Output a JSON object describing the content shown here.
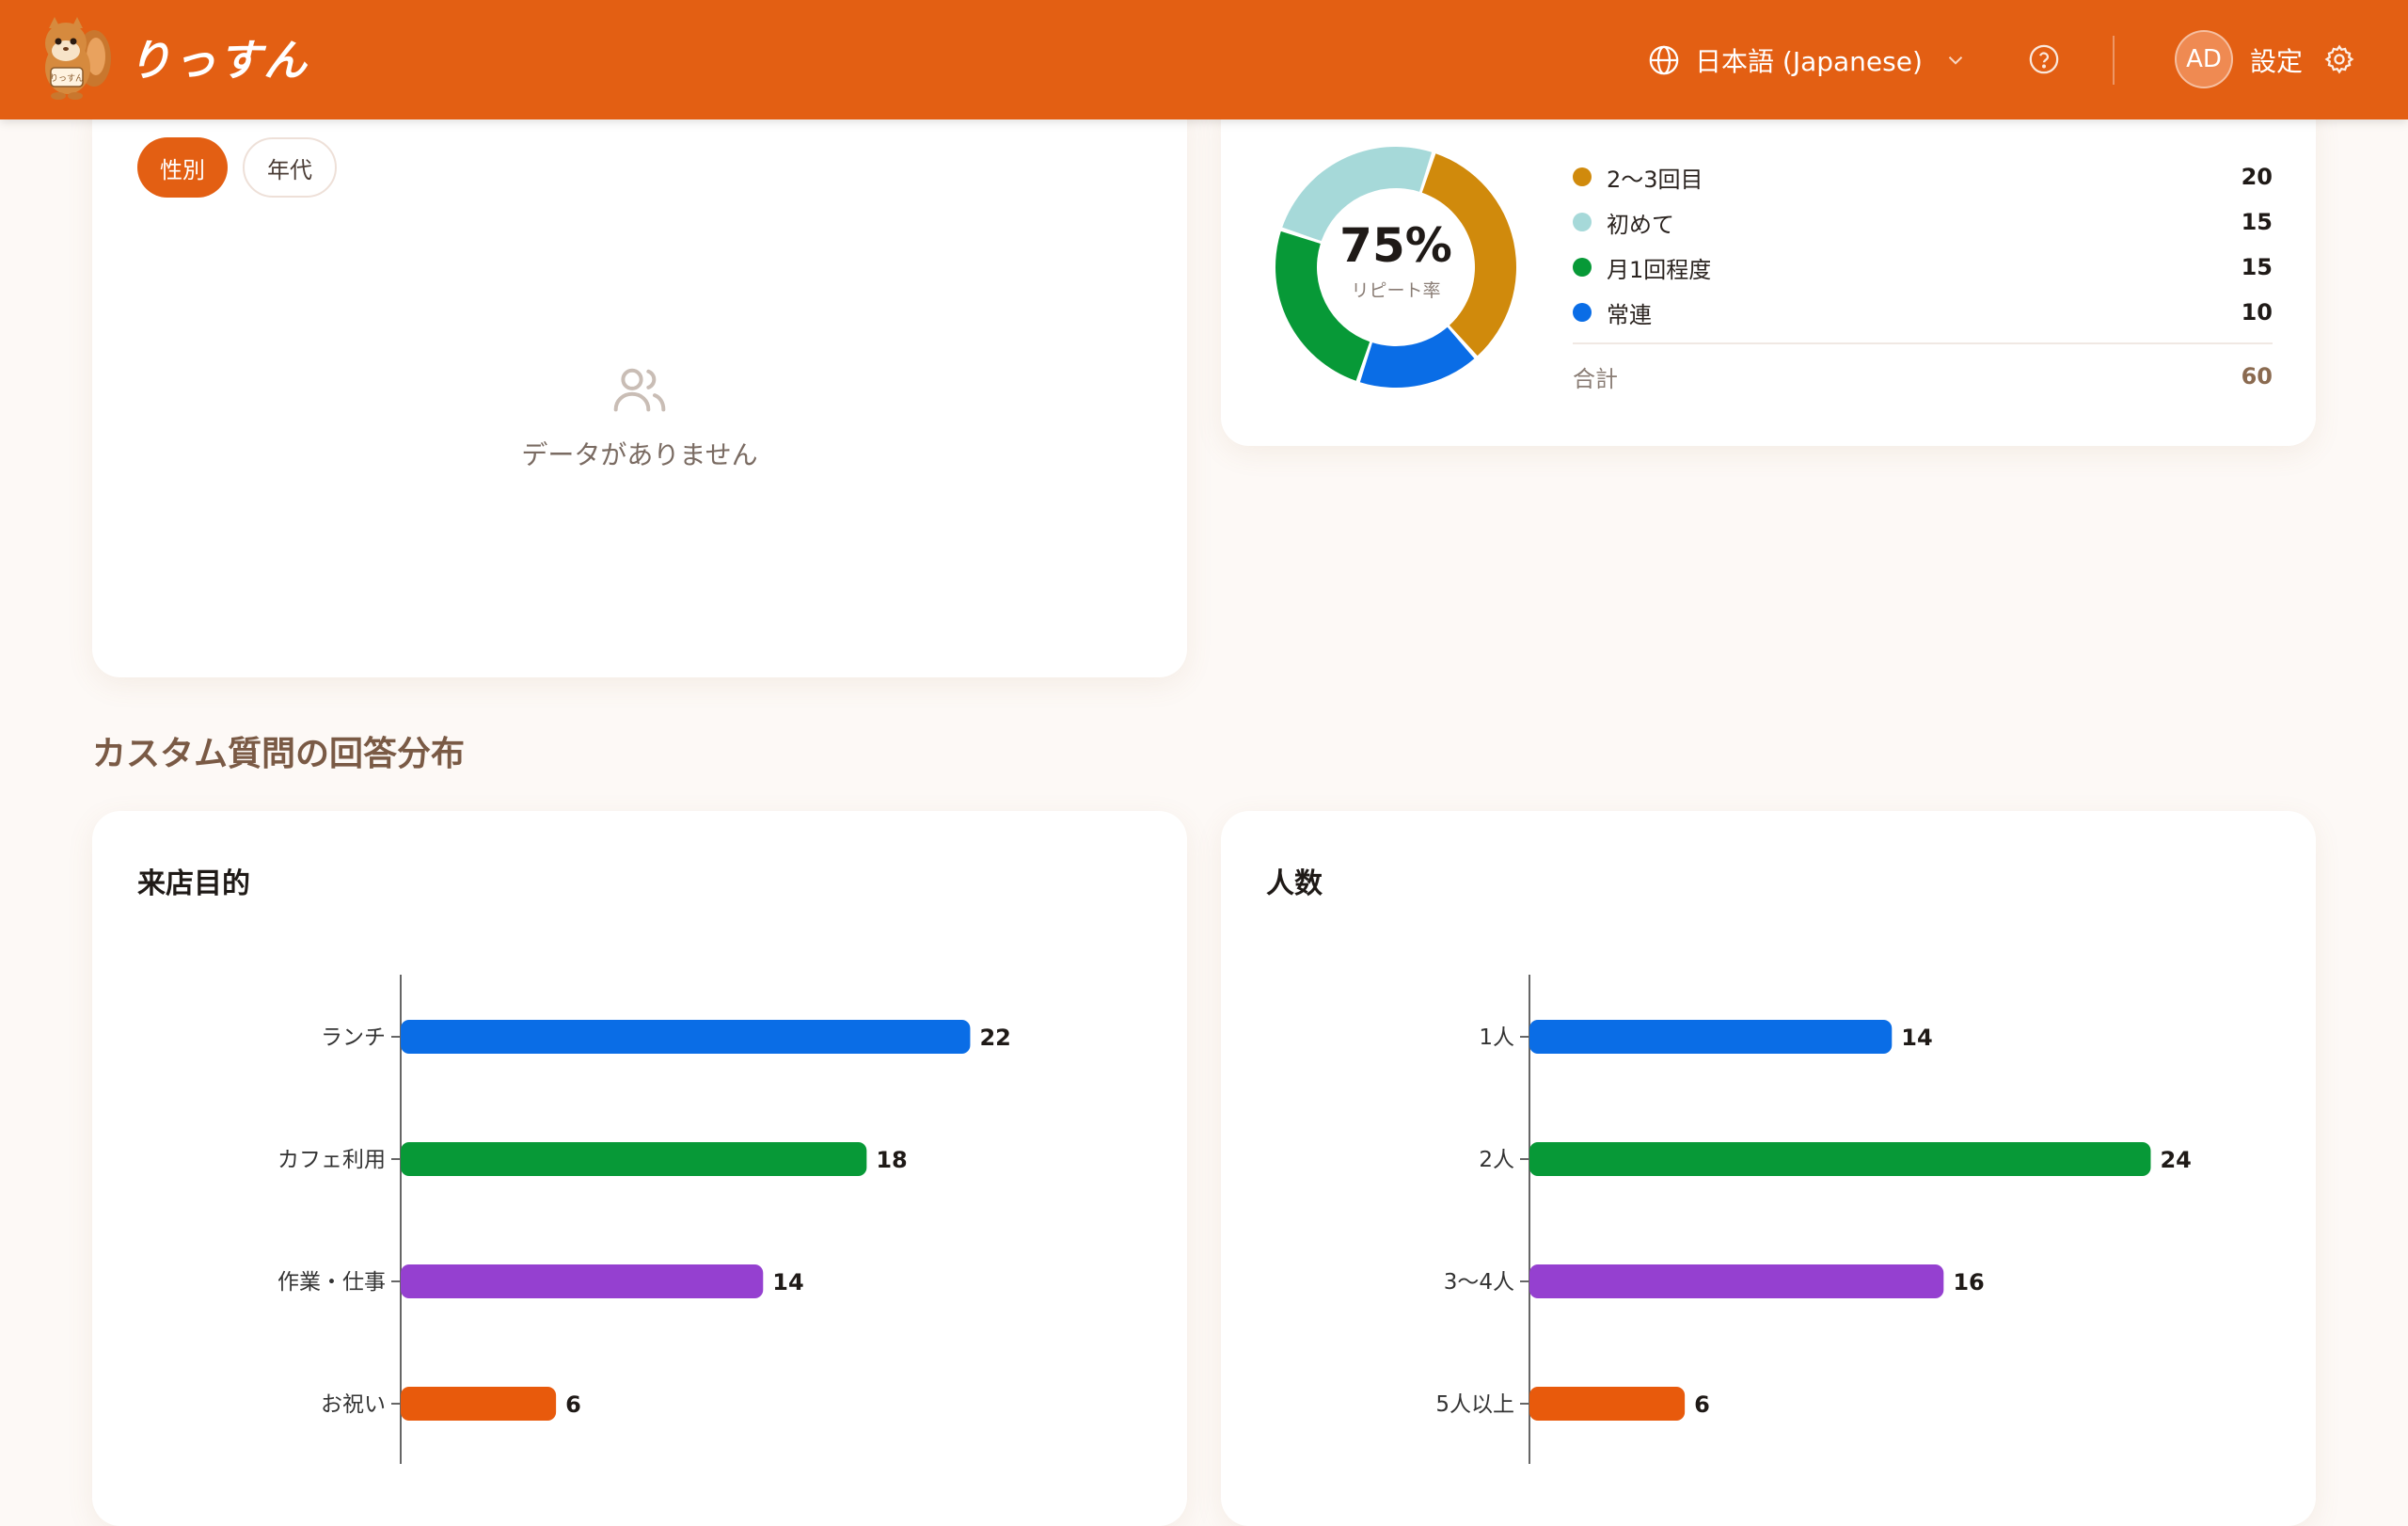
{
  "header": {
    "brand": "りっすん",
    "language_label": "日本語 (Japanese)",
    "avatar_initials": "AD",
    "settings_label": "設定",
    "colors": {
      "bar": "#e35f13"
    }
  },
  "demographics_card": {
    "tabs": [
      {
        "label": "性別",
        "active": true
      },
      {
        "label": "年代",
        "active": false
      }
    ],
    "empty_message": "データがありません"
  },
  "visit_frequency_card": {
    "center_value": "75%",
    "center_label": "リピート率",
    "items": [
      {
        "label": "2〜3回目",
        "value": "20",
        "color": "#d08a0c"
      },
      {
        "label": "初めて",
        "value": "15",
        "color": "#a6d9d9"
      },
      {
        "label": "月1回程度",
        "value": "15",
        "color": "#079937"
      },
      {
        "label": "常連",
        "value": "10",
        "color": "#0a6de6"
      }
    ],
    "total_label": "合計",
    "total_value": "60"
  },
  "section_title": "カスタム質問の回答分布",
  "chart_data": [
    {
      "type": "bar",
      "orientation": "horizontal",
      "title": "来店目的",
      "categories": [
        "ランチ",
        "カフェ利用",
        "作業・仕事",
        "お祝い"
      ],
      "values": [
        22,
        18,
        14,
        6
      ],
      "colors": [
        "#0a6de6",
        "#079937",
        "#9540d0",
        "#e85a0c"
      ]
    },
    {
      "type": "bar",
      "orientation": "horizontal",
      "title": "人数",
      "categories": [
        "1人",
        "2人",
        "3〜4人",
        "5人以上"
      ],
      "values": [
        14,
        24,
        16,
        6
      ],
      "colors": [
        "#0a6de6",
        "#079937",
        "#9540d0",
        "#e85a0c"
      ]
    }
  ]
}
